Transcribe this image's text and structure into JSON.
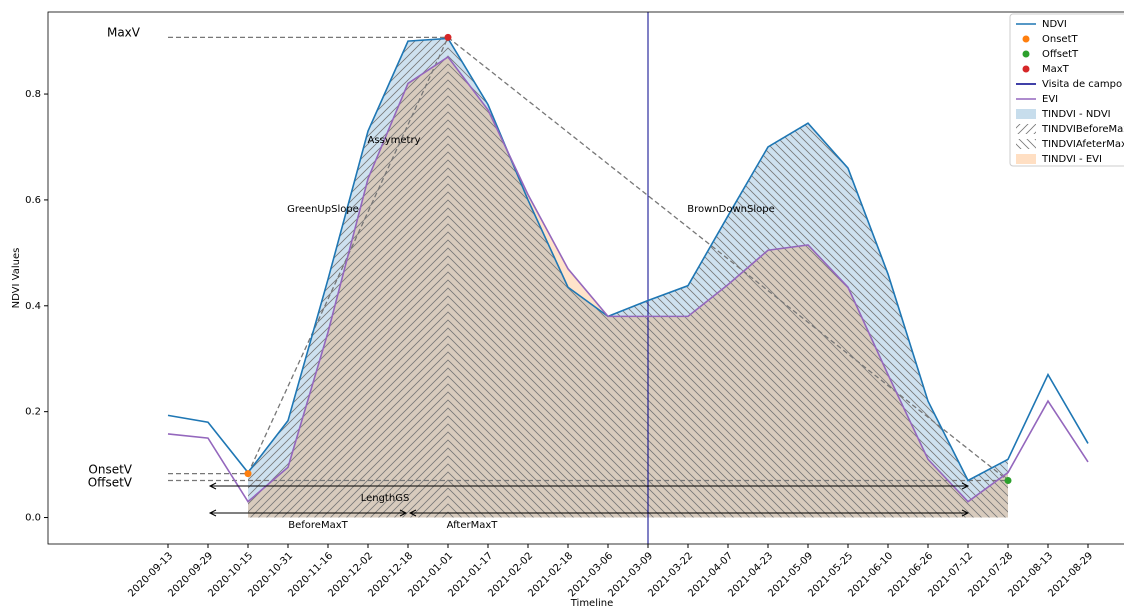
{
  "chart_data": {
    "type": "line",
    "x_label": "Timeline",
    "y_label": "NDVI Values",
    "categories": [
      "2020-09-13",
      "2020-09-29",
      "2020-10-15",
      "2020-10-31",
      "2020-11-16",
      "2020-12-02",
      "2020-12-18",
      "2021-01-01",
      "2021-01-17",
      "2021-02-02",
      "2021-02-18",
      "2021-03-06",
      "2021-03-09",
      "2021-03-22",
      "2021-04-07",
      "2021-04-23",
      "2021-05-09",
      "2021-05-25",
      "2021-06-10",
      "2021-06-26",
      "2021-07-12",
      "2021-07-28",
      "2021-08-13",
      "2021-08-29"
    ],
    "series": [
      {
        "name": "NDVI",
        "color": "#1f77b4",
        "values": [
          0.193,
          0.18,
          0.085,
          0.183,
          0.45,
          0.73,
          0.9,
          0.905,
          0.78,
          0.6,
          0.435,
          0.38,
          0.41,
          0.438,
          0.57,
          0.7,
          0.745,
          0.66,
          0.46,
          0.22,
          0.07,
          0.11,
          0.27,
          0.14
        ]
      },
      {
        "name": "EVI",
        "color": "#9467bd",
        "values": [
          0.158,
          0.15,
          0.03,
          0.095,
          0.35,
          0.64,
          0.82,
          0.87,
          0.77,
          0.61,
          0.47,
          0.38,
          0.38,
          0.38,
          0.44,
          0.505,
          0.515,
          0.435,
          0.27,
          0.11,
          0.03,
          0.085,
          0.22,
          0.105
        ]
      }
    ],
    "points": [
      {
        "name": "OnsetT",
        "color": "#ff7f0e",
        "x": "2020-10-15",
        "value": 0.083
      },
      {
        "name": "OffsetT",
        "color": "#2ca02c",
        "x": "2021-07-28",
        "value": 0.07
      },
      {
        "name": "MaxT",
        "color": "#d62728",
        "x": "2021-01-01",
        "value": 0.907
      }
    ],
    "vline": {
      "name": "Visita de campo",
      "color": "#00008b",
      "x": "2021-03-09"
    },
    "fills": [
      {
        "name": "TINDVI - NDVI",
        "color": "#1f77b4",
        "series": 0
      },
      {
        "name": "TINDVIBeforeMax",
        "color": "#888888",
        "hatch": "/"
      },
      {
        "name": "TINDVIAfeterMax",
        "color": "#888888",
        "hatch": "\\"
      },
      {
        "name": "TINDVI - EVI",
        "color": "#ff7f0e",
        "series": 1
      }
    ],
    "levels": [
      {
        "label": "MaxV",
        "value": 0.907
      },
      {
        "label": "OnsetV",
        "value": 0.083
      },
      {
        "label": "OffsetV",
        "value": 0.07
      }
    ],
    "annotations": [
      "Assymetry",
      "GreenUpSlope",
      "BrownDownSlope",
      "LengthGS",
      "BeforeMaxT",
      "AfterMaxT"
    ],
    "ylim": [
      -0.05,
      0.955
    ],
    "yticks": [
      {
        "value": 0,
        "label": "0.0"
      },
      0.2,
      0.4,
      0.6,
      0.8
    ],
    "legend": "upper right"
  }
}
